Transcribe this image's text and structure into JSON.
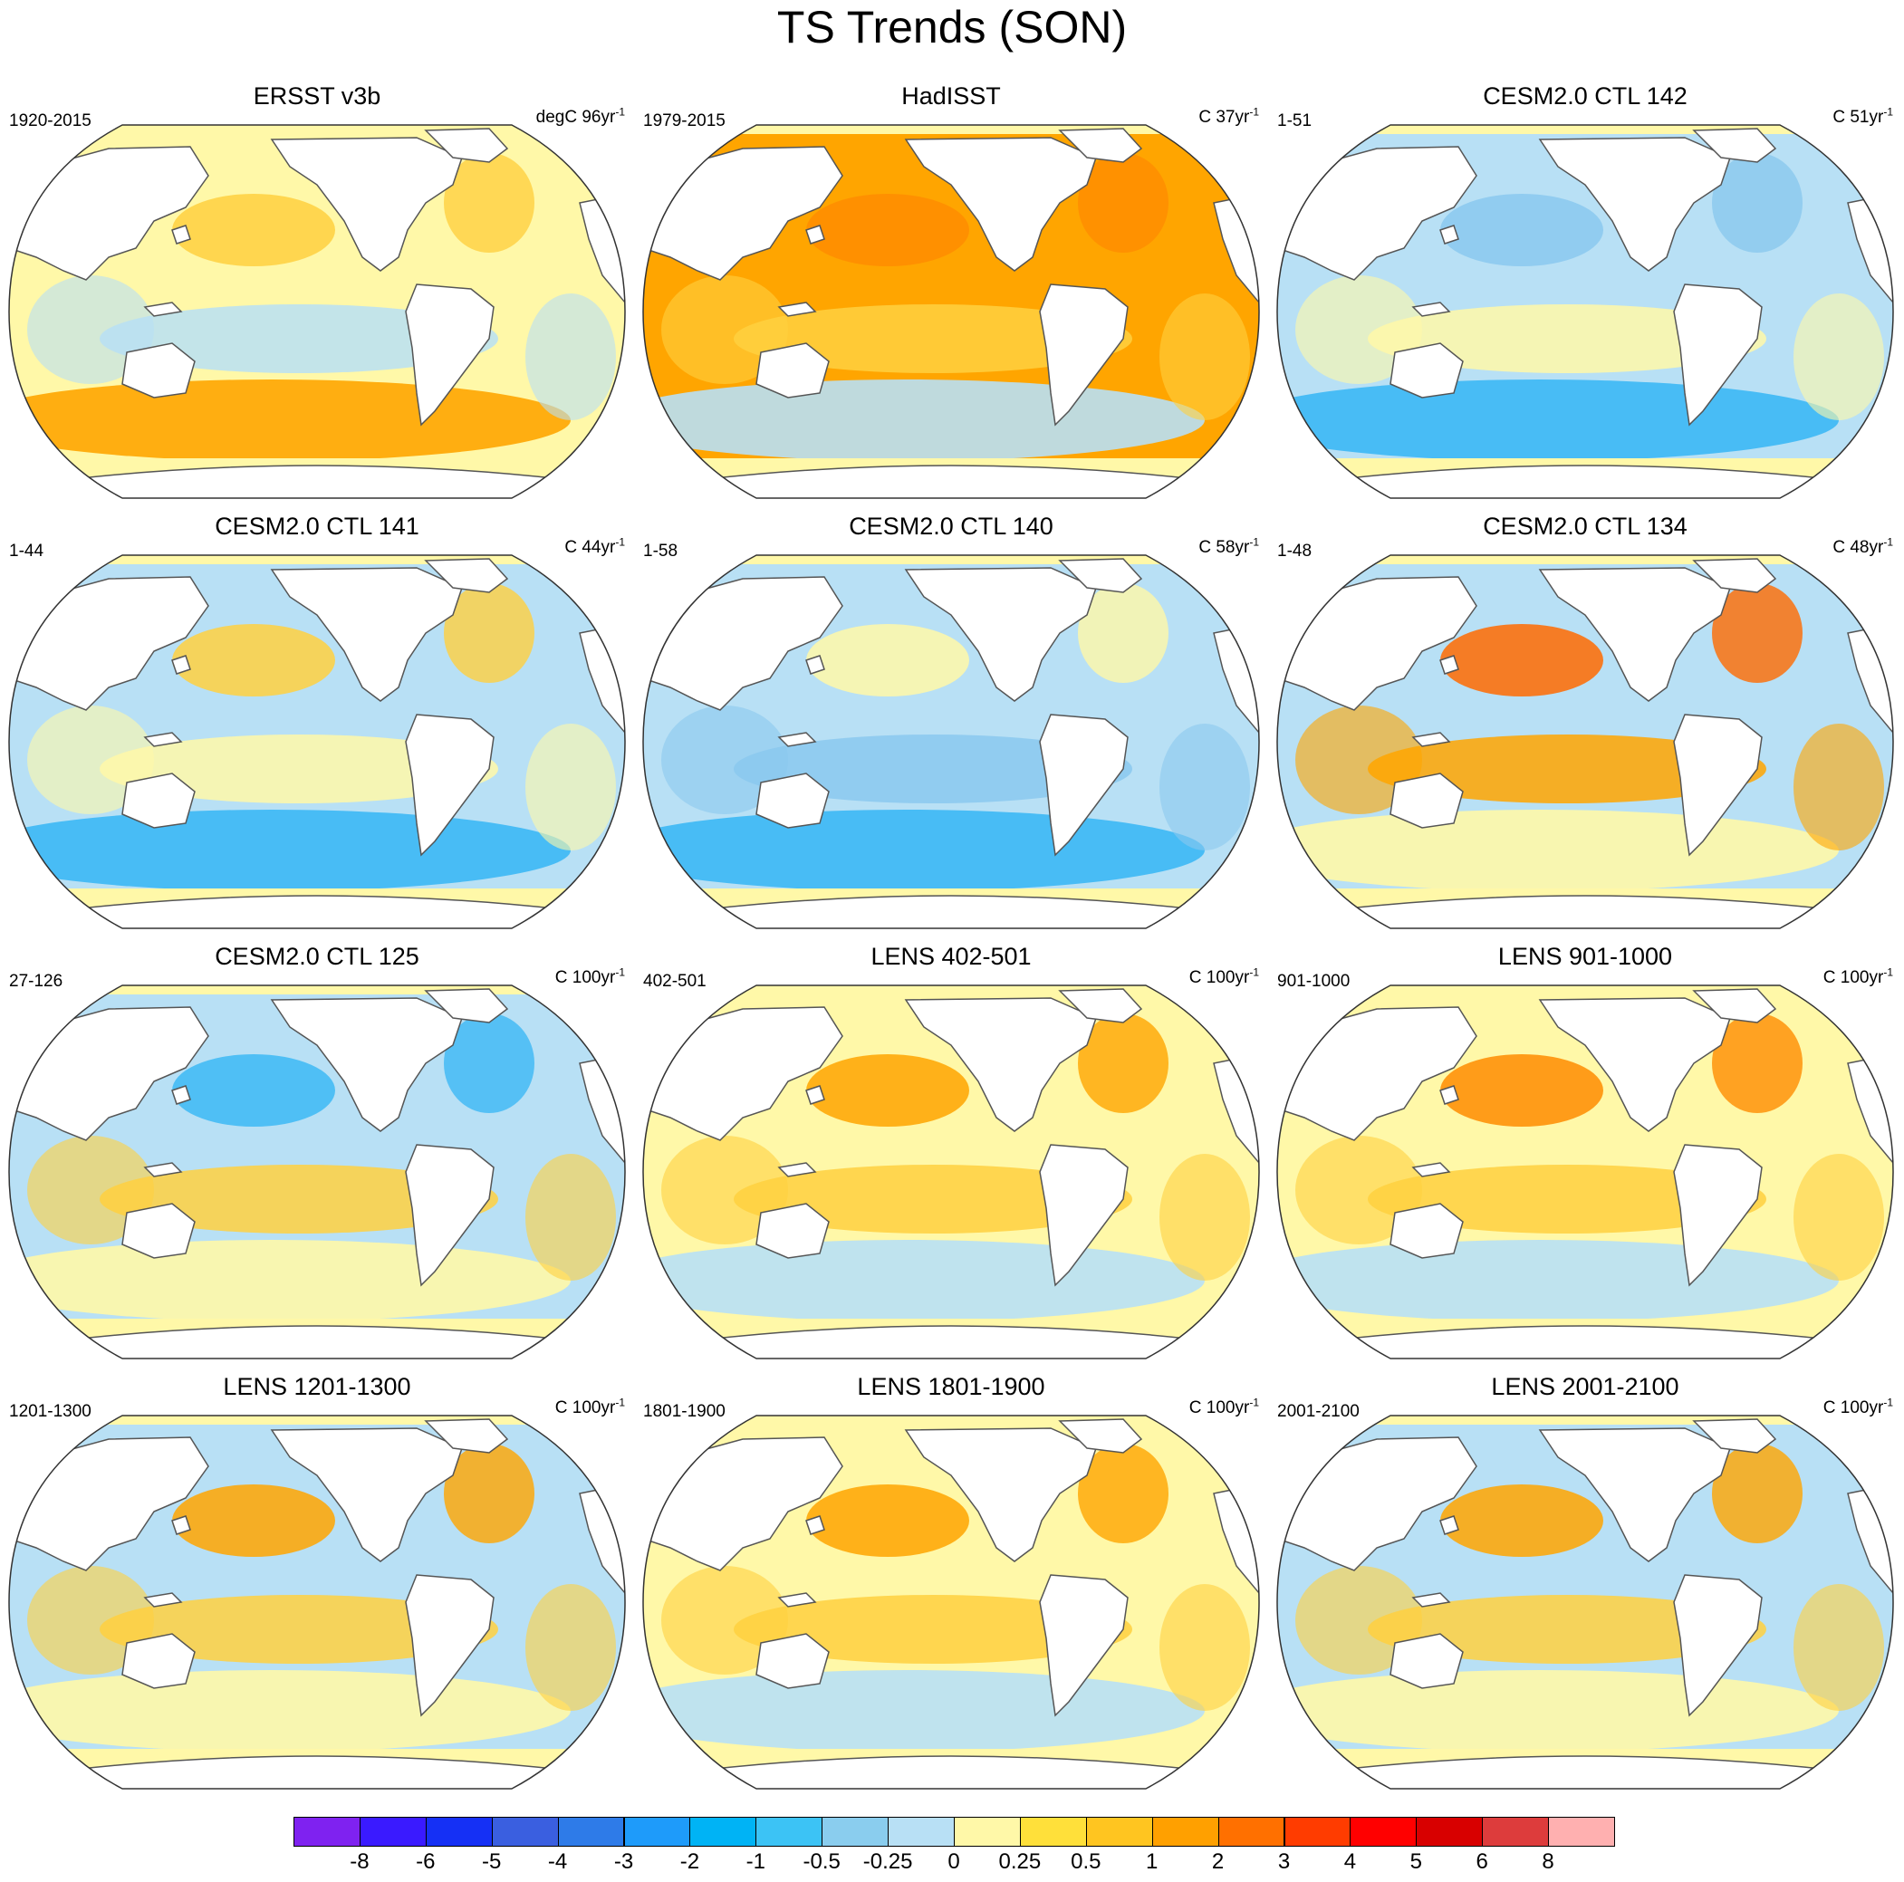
{
  "title": "TS Trends (SON)",
  "unit_superscript": "-1",
  "panels": [
    {
      "title": "ERSST v3b",
      "period": "1920-2015",
      "unit": "degC 96yr",
      "colors": [
        "#FFF8A8",
        "#FFA500",
        "#B8E0F5",
        "#FFD040"
      ]
    },
    {
      "title": "HadISST",
      "period": "1979-2015",
      "unit": "C 37yr",
      "colors": [
        "#FFA500",
        "#B8E0F5",
        "#FFD040",
        "#FF8C00"
      ]
    },
    {
      "title": "CESM2.0 CTL 142",
      "period": "1-51",
      "unit": "C 51yr",
      "colors": [
        "#B8E0F5",
        "#3CB8F5",
        "#FFF8A8",
        "#8AC8EE"
      ]
    },
    {
      "title": "CESM2.0 CTL 141",
      "period": "1-44",
      "unit": "C 44yr",
      "colors": [
        "#B8E0F5",
        "#3CB8F5",
        "#FFF8A8",
        "#FFD040"
      ]
    },
    {
      "title": "CESM2.0 CTL 140",
      "period": "1-58",
      "unit": "C 58yr",
      "colors": [
        "#B8E0F5",
        "#3CB8F5",
        "#8AC8EE",
        "#FFF8A8"
      ]
    },
    {
      "title": "CESM2.0 CTL 134",
      "period": "1-48",
      "unit": "C 48yr",
      "colors": [
        "#B8E0F5",
        "#FFF8A8",
        "#FFA500",
        "#FF6A00"
      ]
    },
    {
      "title": "CESM2.0 CTL 125",
      "period": "27-126",
      "unit": "C 100yr",
      "colors": [
        "#B8E0F5",
        "#FFF8A8",
        "#FFD040",
        "#3CB8F5"
      ]
    },
    {
      "title": "LENS 402-501",
      "period": "402-501",
      "unit": "C 100yr",
      "colors": [
        "#FFF8A8",
        "#B8E0F5",
        "#FFD040",
        "#FFA500"
      ]
    },
    {
      "title": "LENS 901-1000",
      "period": "901-1000",
      "unit": "C 100yr",
      "colors": [
        "#FFF8A8",
        "#B8E0F5",
        "#FFD040",
        "#FF8C00"
      ]
    },
    {
      "title": "LENS 1201-1300",
      "period": "1201-1300",
      "unit": "C 100yr",
      "colors": [
        "#B8E0F5",
        "#FFF8A8",
        "#FFD040",
        "#FFA500"
      ]
    },
    {
      "title": "LENS 1801-1900",
      "period": "1801-1900",
      "unit": "C 100yr",
      "colors": [
        "#FFF8A8",
        "#B8E0F5",
        "#FFD040",
        "#FFA500"
      ]
    },
    {
      "title": "LENS 2001-2100",
      "period": "2001-2100",
      "unit": "C 100yr",
      "colors": [
        "#B8E0F5",
        "#FFF8A8",
        "#FFD040",
        "#FFA500"
      ]
    }
  ],
  "colorbar": {
    "colors": [
      "#7F22F0",
      "#3A1AFF",
      "#1530F5",
      "#3A5FE0",
      "#2E7BE8",
      "#1E9BFA",
      "#00B3F5",
      "#3CC3F5",
      "#8ACDEE",
      "#B8E0F5",
      "#FFF8A8",
      "#FFE03A",
      "#FFC520",
      "#FFA000",
      "#FF7000",
      "#FF3C00",
      "#FF0000",
      "#D80000",
      "#DD3C3C",
      "#FFB0B0"
    ],
    "labels": [
      "-8",
      "-6",
      "-5",
      "-4",
      "-3",
      "-2",
      "-1",
      "-0.5",
      "-0.25",
      "0",
      "0.25",
      "0.5",
      "1",
      "2",
      "3",
      "4",
      "5",
      "6",
      "8"
    ]
  }
}
